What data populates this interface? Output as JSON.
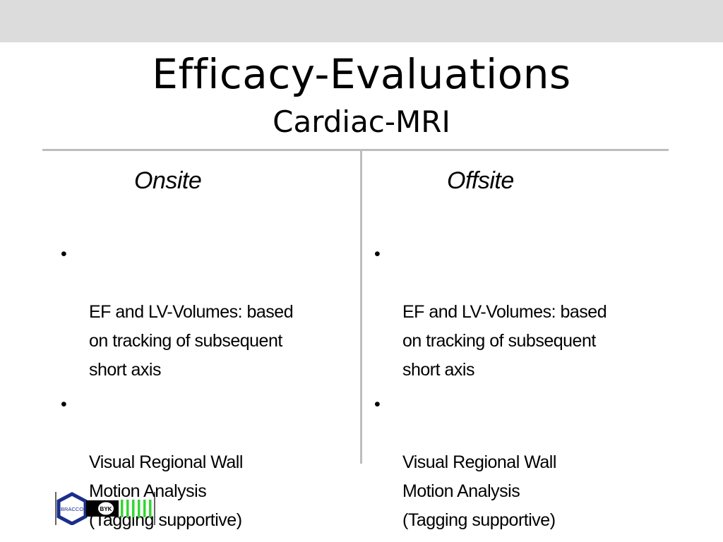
{
  "slide": {
    "title": "Efficacy-Evaluations",
    "subtitle": "Cardiac-MRI"
  },
  "columns": [
    {
      "heading": "Onsite",
      "bullets": [
        "EF and LV-Volumes: based\non tracking of subsequent\nshort axis",
        "Visual Regional Wall\nMotion Analysis\n(Tagging supportive)"
      ]
    },
    {
      "heading": "Offsite",
      "bullets": [
        "EF and LV-Volumes: based\non tracking of subsequent\nshort axis",
        "Visual Regional Wall\nMotion Analysis\n(Tagging supportive)"
      ]
    }
  ],
  "bullet_glyph": "•",
  "logo": {
    "left_mark": "BRACCO",
    "right_mark": "BYK",
    "colors": {
      "hexagon": "#1a2f8a",
      "stripes": "#33d633",
      "black": "#000000"
    }
  },
  "colors": {
    "top_band": "#dcdcdc",
    "rules": "#bdbdbd",
    "text": "#000000"
  }
}
